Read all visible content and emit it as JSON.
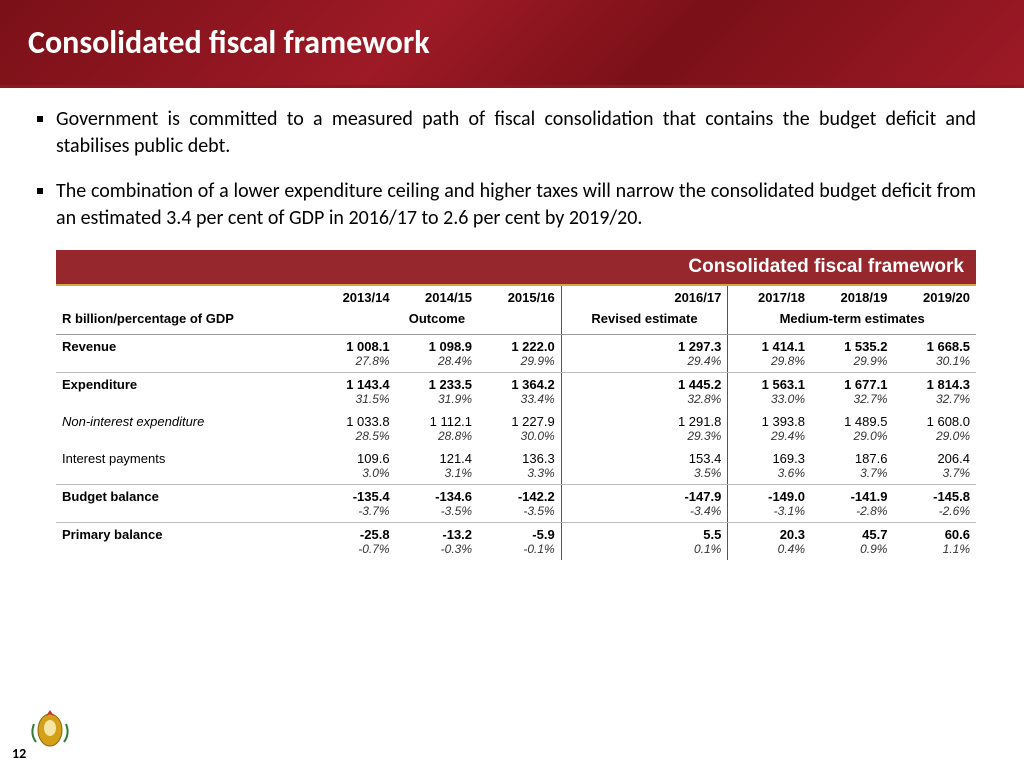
{
  "header": {
    "title": "Consolidated fiscal framework"
  },
  "bullets": [
    "Government is committed to a measured path of fiscal consolidation that contains the budget deficit and stabilises public debt.",
    "The combination of a lower expenditure ceiling and higher taxes will narrow the consolidated budget deficit from an estimated 3.4 per cent of GDP in 2016/17 to 2.6 per cent by 2019/20."
  ],
  "table": {
    "title": "Consolidated fiscal framework",
    "unit_label": "R billion/percentage of GDP",
    "years": [
      "2013/14",
      "2014/15",
      "2015/16",
      "2016/17",
      "2017/18",
      "2018/19",
      "2019/20"
    ],
    "period_groups": [
      {
        "label": "Outcome",
        "span": 3
      },
      {
        "label": "Revised estimate",
        "span": 1
      },
      {
        "label": "Medium-term estimates",
        "span": 3
      }
    ],
    "rows": [
      {
        "label": "Revenue",
        "bold": true,
        "vals": [
          "1 008.1",
          "1 098.9",
          "1 222.0",
          "1 297.3",
          "1 414.1",
          "1 535.2",
          "1 668.5"
        ],
        "pcts": [
          "27.8%",
          "28.4%",
          "29.9%",
          "29.4%",
          "29.8%",
          "29.9%",
          "30.1%"
        ],
        "section_end": true
      },
      {
        "label": "Expenditure",
        "bold": true,
        "vals": [
          "1 143.4",
          "1 233.5",
          "1 364.2",
          "1 445.2",
          "1 563.1",
          "1 677.1",
          "1 814.3"
        ],
        "pcts": [
          "31.5%",
          "31.9%",
          "33.4%",
          "32.8%",
          "33.0%",
          "32.7%",
          "32.7%"
        ],
        "section_end": false
      },
      {
        "label": "Non-interest expenditure",
        "bold": false,
        "italic": true,
        "vals": [
          "1 033.8",
          "1 112.1",
          "1 227.9",
          "1 291.8",
          "1 393.8",
          "1 489.5",
          "1 608.0"
        ],
        "pcts": [
          "28.5%",
          "28.8%",
          "30.0%",
          "29.3%",
          "29.4%",
          "29.0%",
          "29.0%"
        ],
        "section_end": false
      },
      {
        "label": "Interest payments",
        "bold": false,
        "vals": [
          "109.6",
          "121.4",
          "136.3",
          "153.4",
          "169.3",
          "187.6",
          "206.4"
        ],
        "pcts": [
          "3.0%",
          "3.1%",
          "3.3%",
          "3.5%",
          "3.6%",
          "3.7%",
          "3.7%"
        ],
        "section_end": true
      },
      {
        "label": "Budget balance",
        "bold": true,
        "vals": [
          "-135.4",
          "-134.6",
          "-142.2",
          "-147.9",
          "-149.0",
          "-141.9",
          "-145.8"
        ],
        "pcts": [
          "-3.7%",
          "-3.5%",
          "-3.5%",
          "-3.4%",
          "-3.1%",
          "-2.8%",
          "-2.6%"
        ],
        "section_end": true
      },
      {
        "label": "Primary balance",
        "bold": true,
        "vals": [
          "-25.8",
          "-13.2",
          "-5.9",
          "5.5",
          "20.3",
          "45.7",
          "60.6"
        ],
        "pcts": [
          "-0.7%",
          "-0.3%",
          "-0.1%",
          "0.1%",
          "0.4%",
          "0.9%",
          "1.1%"
        ],
        "section_end": false
      }
    ],
    "colors": {
      "title_bg": "#96272d",
      "title_fg": "#ffffff",
      "title_underline": "#d9a34a",
      "row_divider": "#bbbbbb",
      "vline": "#555555"
    }
  },
  "page_number": "12"
}
